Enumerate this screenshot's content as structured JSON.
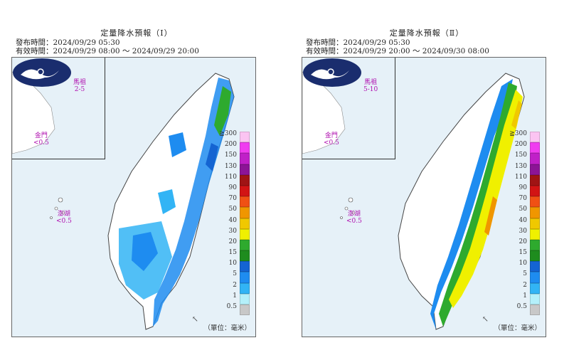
{
  "panels": [
    {
      "title": "定量降水預報（Ⅰ）",
      "issue_time": "發布時間：2024/09/29 05:30",
      "valid_time": "有效時間：2024/09/29 08:00 ～ 2024/09/29 20:00",
      "mazu": {
        "name": "馬祖",
        "value": "2-5"
      },
      "kinmen": {
        "name": "金門",
        "value": "<0.5"
      },
      "penghu": {
        "name": "澎湖",
        "value": "<0.5"
      }
    },
    {
      "title": "定量降水預報（Ⅱ）",
      "issue_time": "發布時間：2024/09/29 05:30",
      "valid_time": "有效時間：2024/09/29 20:00 ～ 2024/09/30 08:00",
      "mazu": {
        "name": "馬祖",
        "value": "5-10"
      },
      "kinmen": {
        "name": "金門",
        "value": "<0.5"
      },
      "penghu": {
        "name": "澎湖",
        "value": "<0.5"
      }
    }
  ],
  "legend": {
    "labels": [
      "≧300",
      "200",
      "150",
      "130",
      "110",
      "90",
      "70",
      "50",
      "40",
      "30",
      "20",
      "15",
      "10",
      "5",
      "2",
      "1",
      "0.5"
    ],
    "colors": [
      "#fbc4f2",
      "#f03cf0",
      "#c020c8",
      "#8c1496",
      "#a01414",
      "#d21414",
      "#f05014",
      "#f09600",
      "#f0c800",
      "#f0f000",
      "#2eaa2e",
      "#1e8c1e",
      "#1464d2",
      "#1e8cf0",
      "#32b4f5",
      "#b4f0fa",
      "#c8c8c8"
    ],
    "unit": "（單位：毫米）"
  }
}
